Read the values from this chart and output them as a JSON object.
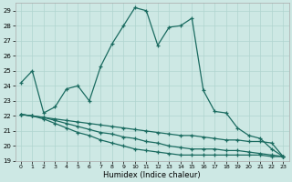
{
  "xlabel": "Humidex (Indice chaleur)",
  "background_color": "#cde8e4",
  "grid_color": "#b0d4cf",
  "line_color": "#1a6b60",
  "xlim": [
    -0.5,
    23.5
  ],
  "ylim": [
    19,
    29.5
  ],
  "yticks": [
    19,
    20,
    21,
    22,
    23,
    24,
    25,
    26,
    27,
    28,
    29
  ],
  "xticks": [
    0,
    1,
    2,
    3,
    4,
    5,
    6,
    7,
    8,
    9,
    10,
    11,
    12,
    13,
    14,
    15,
    16,
    17,
    18,
    19,
    20,
    21,
    22,
    23
  ],
  "series": [
    {
      "x": [
        0,
        1,
        2,
        3,
        4,
        5,
        6,
        7,
        8,
        9,
        10,
        11,
        12,
        13,
        14,
        15,
        16,
        17,
        18,
        19,
        20,
        21,
        22,
        23
      ],
      "y": [
        24.2,
        25.0,
        22.2,
        22.6,
        23.8,
        24.0,
        23.0,
        25.3,
        26.8,
        28.0,
        29.2,
        29.0,
        26.7,
        27.9,
        28.0,
        28.5,
        23.7,
        22.3,
        22.2,
        21.2,
        20.7,
        20.5,
        19.8,
        19.3
      ]
    },
    {
      "x": [
        0,
        1,
        2,
        3,
        4,
        5,
        6,
        7,
        8,
        9,
        10,
        11,
        12,
        13,
        14,
        15,
        16,
        17,
        18,
        19,
        20,
        21,
        22,
        23
      ],
      "y": [
        22.1,
        22.0,
        21.9,
        21.8,
        21.7,
        21.6,
        21.5,
        21.4,
        21.3,
        21.2,
        21.1,
        21.0,
        20.9,
        20.8,
        20.7,
        20.7,
        20.6,
        20.5,
        20.4,
        20.4,
        20.3,
        20.3,
        20.2,
        19.3
      ]
    },
    {
      "x": [
        0,
        1,
        2,
        3,
        4,
        5,
        6,
        7,
        8,
        9,
        10,
        11,
        12,
        13,
        14,
        15,
        16,
        17,
        18,
        19,
        20,
        21,
        22,
        23
      ],
      "y": [
        22.1,
        22.0,
        21.9,
        21.7,
        21.5,
        21.3,
        21.1,
        20.9,
        20.8,
        20.6,
        20.5,
        20.3,
        20.2,
        20.0,
        19.9,
        19.8,
        19.8,
        19.8,
        19.7,
        19.7,
        19.6,
        19.5,
        19.4,
        19.3
      ]
    },
    {
      "x": [
        0,
        1,
        2,
        3,
        4,
        5,
        6,
        7,
        8,
        9,
        10,
        11,
        12,
        13,
        14,
        15,
        16,
        17,
        18,
        19,
        20,
        21,
        22,
        23
      ],
      "y": [
        22.1,
        22.0,
        21.8,
        21.5,
        21.2,
        20.9,
        20.7,
        20.4,
        20.2,
        20.0,
        19.8,
        19.7,
        19.6,
        19.5,
        19.4,
        19.4,
        19.4,
        19.4,
        19.4,
        19.4,
        19.4,
        19.4,
        19.3,
        19.3
      ]
    }
  ]
}
